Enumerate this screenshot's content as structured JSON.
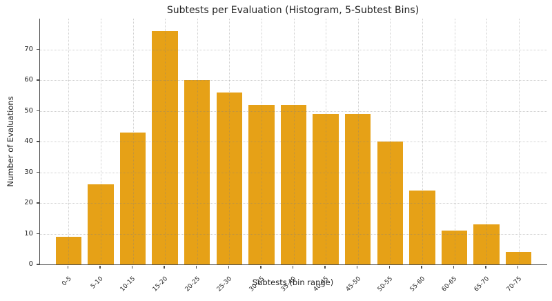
{
  "chart_data": {
    "type": "bar",
    "title": "Subtests per Evaluation (Histogram, 5-Subtest Bins)",
    "xlabel": "Subtests (bin range)",
    "ylabel": "Number of Evaluations",
    "categories": [
      "0-5",
      "5-10",
      "10-15",
      "15-20",
      "20-25",
      "25-30",
      "30-35",
      "35-40",
      "40-45",
      "45-50",
      "50-55",
      "55-60",
      "60-65",
      "65-70",
      "70-75"
    ],
    "values": [
      9,
      26,
      43,
      76,
      60,
      56,
      52,
      52,
      49,
      49,
      40,
      24,
      11,
      13,
      4
    ],
    "ylim": [
      0,
      80
    ],
    "yticks": [
      0,
      10,
      20,
      30,
      40,
      50,
      60,
      70
    ],
    "grid": true,
    "legend": "none",
    "bar_color": "#E6A117",
    "spine_color": "#4c4c4c",
    "grid_color": "rgba(130,130,130,0.38)",
    "background": "#FFFFFF"
  }
}
